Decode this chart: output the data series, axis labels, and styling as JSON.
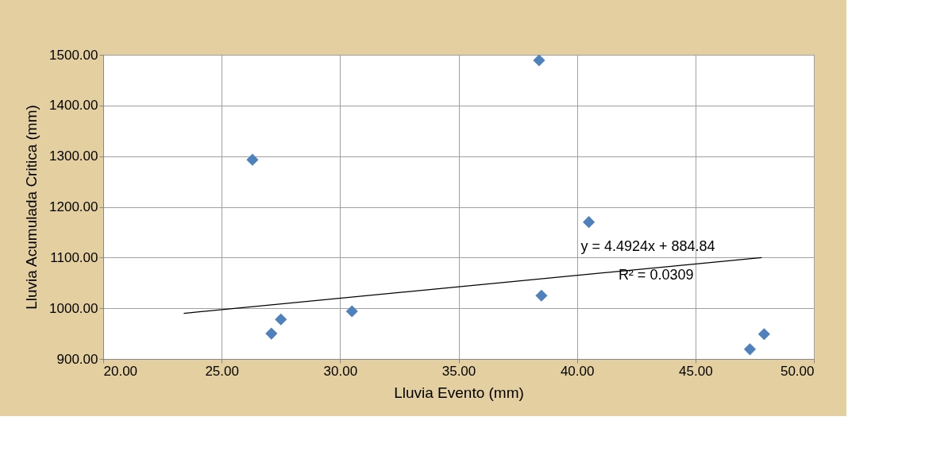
{
  "chart_data": {
    "type": "scatter",
    "xlabel": "Lluvia Evento (mm)",
    "ylabel": "Lluvia Acumulada  Critica  (mm)",
    "xlim": [
      20,
      50
    ],
    "ylim": [
      900,
      1500
    ],
    "xticks": [
      {
        "value": 20,
        "label": "20.00"
      },
      {
        "value": 25,
        "label": "25.00"
      },
      {
        "value": 30,
        "label": "30.00"
      },
      {
        "value": 35,
        "label": "35.00"
      },
      {
        "value": 40,
        "label": "40.00"
      },
      {
        "value": 45,
        "label": "45.00"
      },
      {
        "value": 50,
        "label": "50.00"
      }
    ],
    "yticks": [
      {
        "value": 900,
        "label": "900.00"
      },
      {
        "value": 1000,
        "label": "1000.00"
      },
      {
        "value": 1100,
        "label": "1100.00"
      },
      {
        "value": 1200,
        "label": "1200.00"
      },
      {
        "value": 1300,
        "label": "1300.00"
      },
      {
        "value": 1400,
        "label": "1400.00"
      },
      {
        "value": 1500,
        "label": "1500.00"
      }
    ],
    "grid": true,
    "legend": false,
    "series": [
      {
        "color": "#4f81bd",
        "marker": "diamond",
        "x": [
          26.3,
          27.1,
          27.5,
          30.5,
          38.4,
          38.5,
          40.5,
          47.3,
          47.9
        ],
        "values": [
          1293,
          950,
          978,
          994,
          1489,
          1025,
          1170,
          919,
          949
        ]
      },
      {
        "type": "line",
        "marker": "none",
        "color": "#000000",
        "x": [
          23.4,
          47.8
        ],
        "values": [
          990,
          1100
        ]
      }
    ],
    "annotations": [
      "y = 4.4924x + 884.84",
      "R² = 0.0309"
    ]
  }
}
